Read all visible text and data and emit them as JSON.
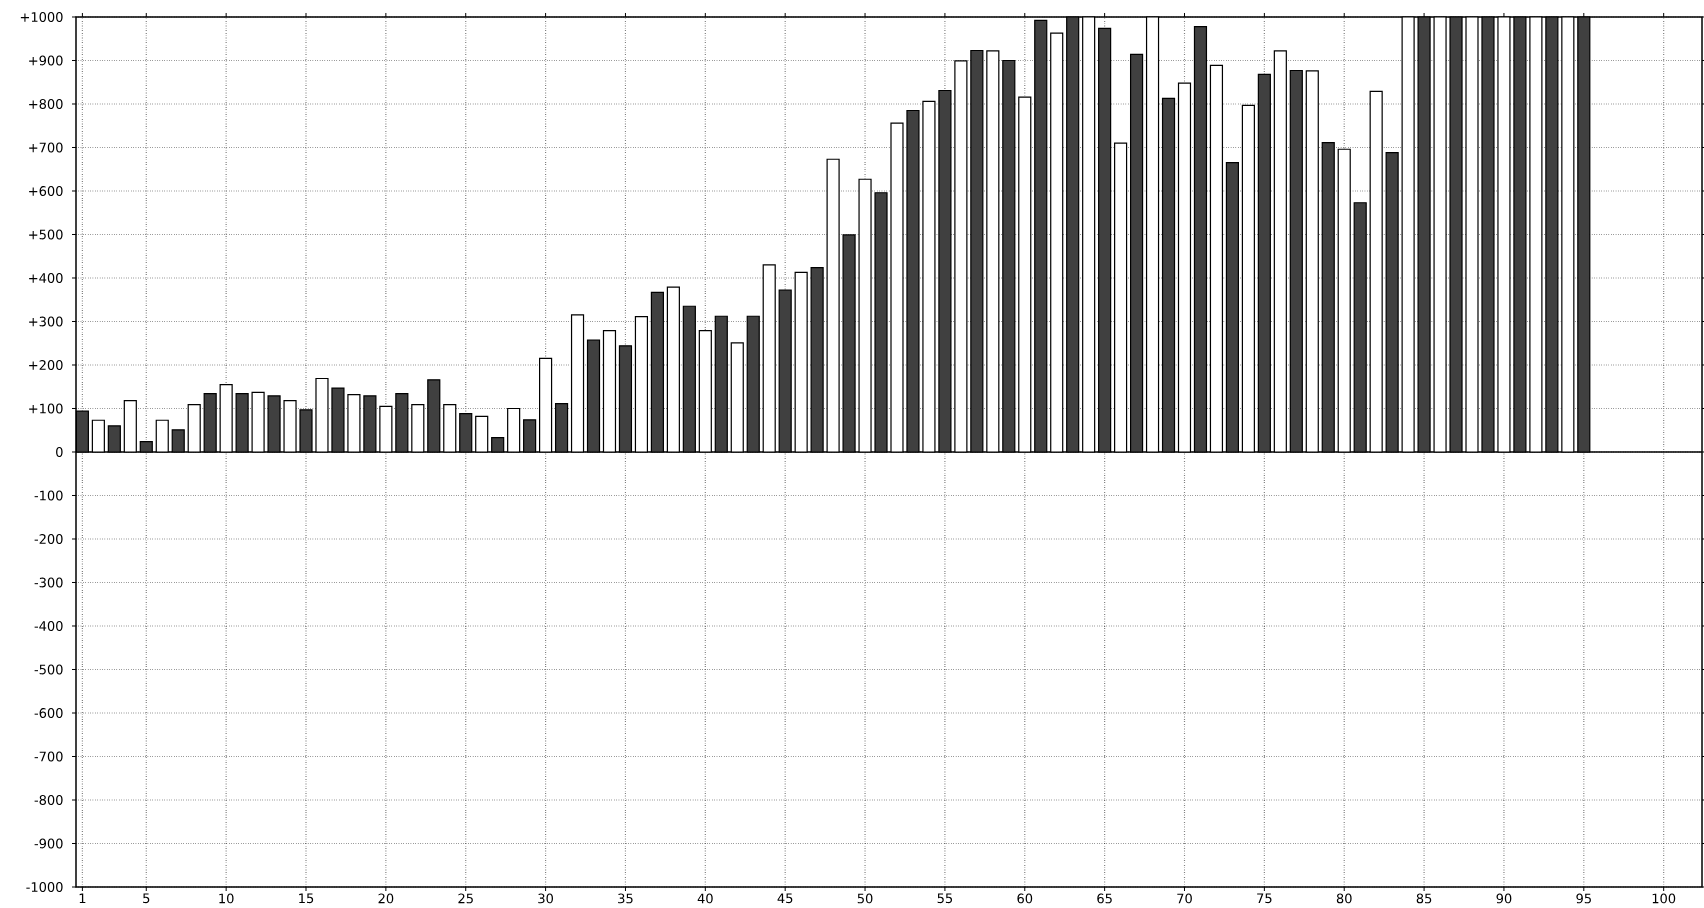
{
  "chart_data": {
    "type": "bar",
    "x": [
      1,
      2,
      3,
      4,
      5,
      6,
      7,
      8,
      9,
      10,
      11,
      12,
      13,
      14,
      15,
      16,
      17,
      18,
      19,
      20,
      21,
      22,
      23,
      24,
      25,
      26,
      27,
      28,
      29,
      30,
      31,
      32,
      33,
      34,
      35,
      36,
      37,
      38,
      39,
      40,
      41,
      42,
      43,
      44,
      45,
      46,
      47,
      48,
      49,
      50,
      51,
      52,
      53,
      54,
      55,
      56,
      57,
      58,
      59,
      60,
      61,
      62,
      63,
      64,
      65,
      66,
      67,
      68,
      69,
      70,
      71,
      72,
      73,
      74,
      75,
      76,
      77,
      78,
      79,
      80,
      81,
      82,
      83,
      84,
      85,
      86,
      87,
      88,
      89,
      90,
      91,
      92,
      93,
      94,
      95
    ],
    "values": [
      94,
      73,
      60,
      118,
      24,
      73,
      51,
      109,
      134,
      155,
      134,
      137,
      129,
      118,
      97,
      169,
      147,
      132,
      129,
      105,
      134,
      109,
      166,
      109,
      88,
      82,
      33,
      100,
      74,
      215,
      111,
      315,
      257,
      279,
      244,
      311,
      367,
      379,
      335,
      279,
      312,
      251,
      312,
      430,
      372,
      413,
      424,
      673,
      499,
      627,
      596,
      756,
      785,
      806,
      831,
      899,
      923,
      922,
      900,
      816,
      992,
      963,
      1000,
      1000,
      974,
      710,
      914,
      1000,
      813,
      848,
      978,
      889,
      665,
      797,
      868,
      922,
      877,
      876,
      711,
      696,
      573,
      829,
      688,
      1000,
      1000,
      1000,
      1000,
      1000,
      1000,
      1000,
      1000,
      1000,
      1000,
      1000,
      1000
    ],
    "colors": [
      "#404040",
      "#ffffff",
      "#404040",
      "#ffffff",
      "#404040",
      "#ffffff",
      "#404040",
      "#ffffff",
      "#404040",
      "#ffffff",
      "#404040",
      "#ffffff",
      "#404040",
      "#ffffff",
      "#404040",
      "#ffffff",
      "#404040",
      "#ffffff",
      "#404040",
      "#ffffff",
      "#404040",
      "#ffffff",
      "#404040",
      "#ffffff",
      "#404040",
      "#ffffff",
      "#404040",
      "#ffffff",
      "#404040",
      "#ffffff",
      "#404040",
      "#ffffff",
      "#404040",
      "#ffffff",
      "#404040",
      "#ffffff",
      "#404040",
      "#ffffff",
      "#404040",
      "#ffffff",
      "#404040",
      "#ffffff",
      "#404040",
      "#ffffff",
      "#404040",
      "#ffffff",
      "#404040",
      "#ffffff",
      "#404040",
      "#ffffff",
      "#404040",
      "#ffffff",
      "#404040",
      "#ffffff",
      "#404040",
      "#ffffff",
      "#404040",
      "#ffffff",
      "#404040",
      "#ffffff",
      "#404040",
      "#ffffff",
      "#404040",
      "#ffffff",
      "#404040",
      "#ffffff",
      "#404040",
      "#ffffff",
      "#404040",
      "#ffffff",
      "#404040",
      "#ffffff",
      "#404040",
      "#ffffff",
      "#404040",
      "#ffffff",
      "#404040",
      "#ffffff",
      "#404040",
      "#ffffff",
      "#404040",
      "#ffffff",
      "#404040",
      "#ffffff",
      "#404040",
      "#ffffff",
      "#404040",
      "#ffffff",
      "#404040",
      "#ffffff",
      "#404040",
      "#ffffff",
      "#404040",
      "#ffffff",
      "#404040"
    ],
    "xlim": [
      0.6,
      102.4
    ],
    "ylim": [
      -1000,
      1000
    ],
    "xticks": [
      1,
      5,
      10,
      15,
      20,
      25,
      30,
      35,
      40,
      45,
      50,
      55,
      60,
      65,
      70,
      75,
      80,
      85,
      90,
      95,
      100
    ],
    "yticks": [
      -1000,
      -900,
      -800,
      -700,
      -600,
      -500,
      -400,
      -300,
      -200,
      -100,
      0,
      {
        "value": 100,
        "label": "+100"
      },
      {
        "value": 200,
        "label": "+200"
      },
      {
        "value": 300,
        "label": "+300"
      },
      {
        "value": 400,
        "label": "+400"
      },
      {
        "value": 500,
        "label": "+500"
      },
      {
        "value": 600,
        "label": "+600"
      },
      {
        "value": 700,
        "label": "+700"
      },
      {
        "value": 800,
        "label": "+800"
      },
      {
        "value": 900,
        "label": "+900"
      },
      {
        "value": 1000,
        "label": "+1000"
      }
    ],
    "grid": true
  }
}
